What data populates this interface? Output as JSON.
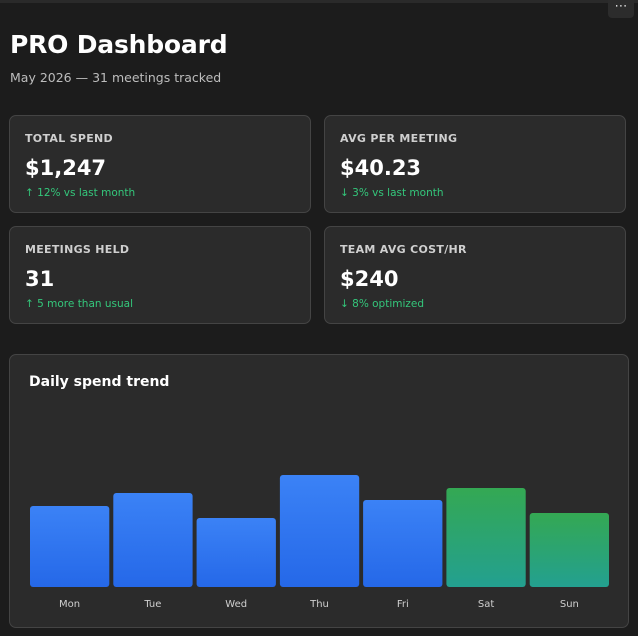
{
  "header": {
    "more_icon": "⋯",
    "title": "PRO Dashboard",
    "subtitle": "May 2026 — 31 meetings tracked"
  },
  "stats": [
    {
      "label": "TOTAL SPEND",
      "value": "$1,247",
      "delta": "↑ 12% vs last month"
    },
    {
      "label": "AVG PER MEETING",
      "value": "$40.23",
      "delta": "↓ 3% vs last month"
    },
    {
      "label": "MEETINGS HELD",
      "value": "31",
      "delta": "↑ 5 more than usual"
    },
    {
      "label": "TEAM AVG COST/HR",
      "value": "$240",
      "delta": "↓ 8% optimized"
    }
  ],
  "colors": {
    "weekday_bar_top": "#3b82f6",
    "weekday_bar_bottom": "#2568e8",
    "weekend_bar_top": "#34a853",
    "weekend_bar_bottom": "#23a090",
    "delta_text": "#34c77b"
  },
  "chart_data": {
    "type": "bar",
    "title": "Daily spend trend",
    "categories": [
      "Mon",
      "Tue",
      "Wed",
      "Thu",
      "Fri",
      "Sat",
      "Sun"
    ],
    "values": [
      81,
      94,
      69,
      112,
      87,
      99,
      74
    ],
    "weekend": [
      false,
      false,
      false,
      false,
      false,
      true,
      true
    ],
    "ylim": [
      0,
      180
    ],
    "grid": false,
    "legend": "none"
  }
}
